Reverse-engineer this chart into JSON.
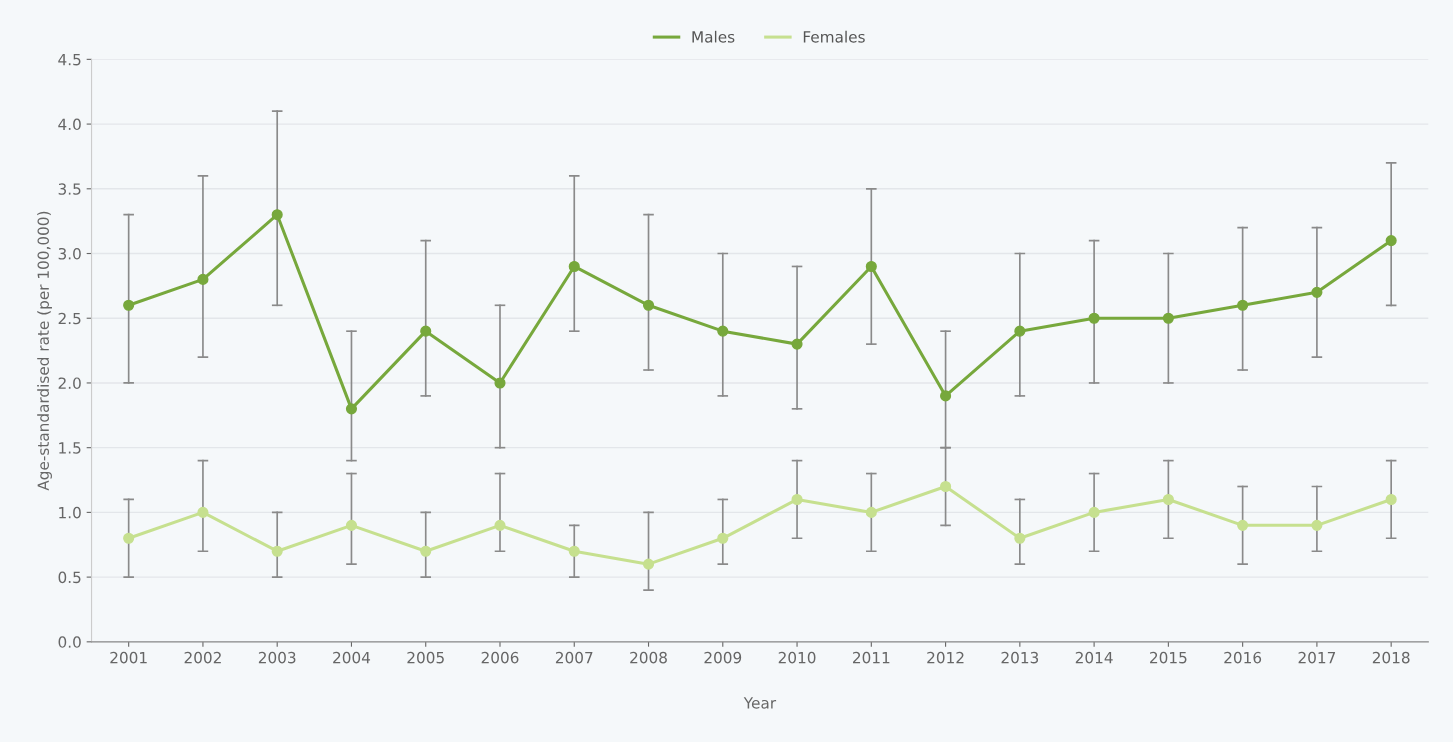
{
  "chart_data": {
    "type": "line",
    "xlabel": "Year",
    "ylabel": "Age-standardised rate (per 100,000)",
    "categories": [
      "2001",
      "2002",
      "2003",
      "2004",
      "2005",
      "2006",
      "2007",
      "2008",
      "2009",
      "2010",
      "2011",
      "2012",
      "2013",
      "2014",
      "2015",
      "2016",
      "2017",
      "2018"
    ],
    "series": [
      {
        "name": "Males",
        "color": "#77a83c",
        "values": [
          2.6,
          2.8,
          3.3,
          1.8,
          2.4,
          2.0,
          2.9,
          2.6,
          2.4,
          2.3,
          2.9,
          1.9,
          2.4,
          2.5,
          2.5,
          2.6,
          2.7,
          3.1
        ],
        "errors": [
          [
            2.0,
            3.3
          ],
          [
            2.2,
            3.6
          ],
          [
            2.6,
            4.1
          ],
          [
            1.4,
            2.4
          ],
          [
            1.9,
            3.1
          ],
          [
            1.5,
            2.6
          ],
          [
            2.4,
            3.6
          ],
          [
            2.1,
            3.3
          ],
          [
            1.9,
            3.0
          ],
          [
            1.8,
            2.9
          ],
          [
            2.3,
            3.5
          ],
          [
            1.5,
            2.4
          ],
          [
            1.9,
            3.0
          ],
          [
            2.0,
            3.1
          ],
          [
            2.0,
            3.0
          ],
          [
            2.1,
            3.2
          ],
          [
            2.2,
            3.2
          ],
          [
            2.6,
            3.7
          ]
        ]
      },
      {
        "name": "Females",
        "color": "#c6e08f",
        "values": [
          0.8,
          1.0,
          0.7,
          0.9,
          0.7,
          0.9,
          0.7,
          0.6,
          0.8,
          1.1,
          1.0,
          1.2,
          0.8,
          1.0,
          1.1,
          0.9,
          0.9,
          1.1
        ],
        "errors": [
          [
            0.5,
            1.1
          ],
          [
            0.7,
            1.4
          ],
          [
            0.5,
            1.0
          ],
          [
            0.6,
            1.3
          ],
          [
            0.5,
            1.0
          ],
          [
            0.7,
            1.3
          ],
          [
            0.5,
            0.9
          ],
          [
            0.4,
            1.0
          ],
          [
            0.6,
            1.1
          ],
          [
            0.8,
            1.4
          ],
          [
            0.7,
            1.3
          ],
          [
            0.9,
            1.5
          ],
          [
            0.6,
            1.1
          ],
          [
            0.7,
            1.3
          ],
          [
            0.8,
            1.4
          ],
          [
            0.6,
            1.2
          ],
          [
            0.7,
            1.2
          ],
          [
            0.8,
            1.4
          ]
        ]
      }
    ],
    "ylim": [
      0,
      4.5
    ],
    "yticks": [
      {
        "value": 0,
        "label": "0.0"
      },
      0.5,
      {
        "value": 1,
        "label": "1.0"
      },
      1.5,
      {
        "value": 2,
        "label": "2.0"
      },
      2.5,
      {
        "value": 3,
        "label": "3.0"
      },
      3.5,
      {
        "value": 4,
        "label": "4.0"
      },
      4.5
    ],
    "grid": "y",
    "legend": "top",
    "marker": "circle",
    "line_style": "solid"
  }
}
